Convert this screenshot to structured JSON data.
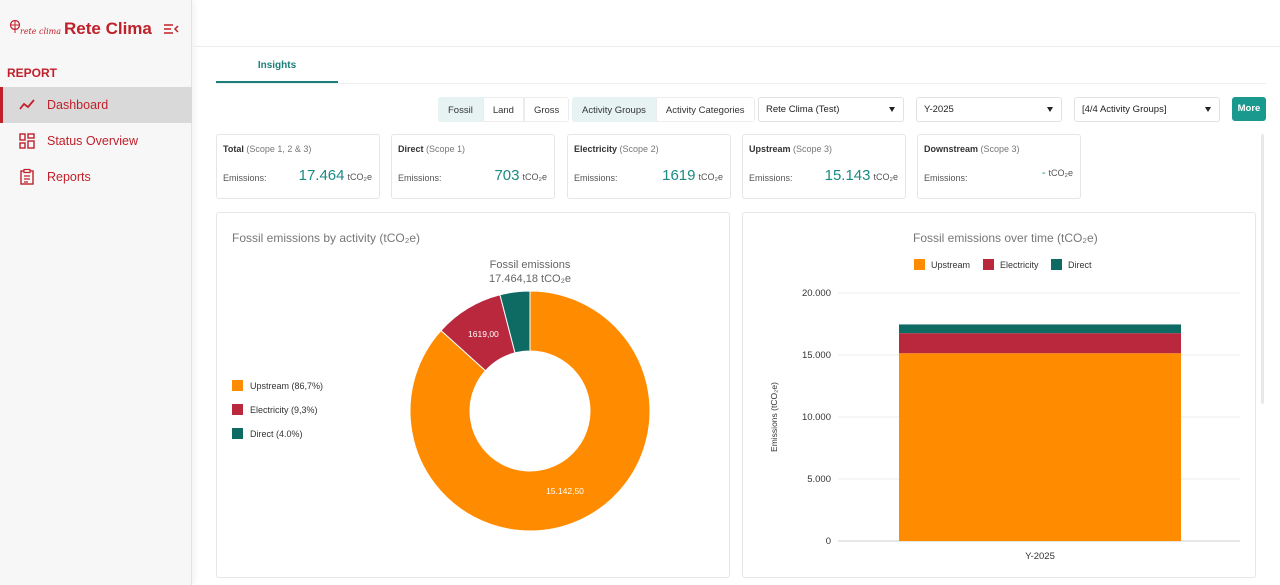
{
  "app": {
    "brand_small": "rete clima",
    "brand_name": "Rete Clima",
    "colors": {
      "brand": "#c0202a",
      "accent": "#1a9a8f",
      "upstream": "#ff8c00",
      "electricity": "#b9283c",
      "direct": "#0e6b63"
    }
  },
  "sidebar": {
    "section": "REPORT",
    "items": [
      {
        "label": "Dashboard",
        "icon": "trend-line-icon",
        "active": true
      },
      {
        "label": "Status Overview",
        "icon": "grid-icon",
        "active": false
      },
      {
        "label": "Reports",
        "icon": "clipboard-icon",
        "active": false
      }
    ]
  },
  "tabs": [
    {
      "label": "Insights"
    }
  ],
  "filters": {
    "emission_type": [
      "Fossil",
      "Land",
      "Gross"
    ],
    "emission_type_selected": "Fossil",
    "grouping": [
      "Activity Groups",
      "Activity Categories"
    ],
    "grouping_selected": "Activity Groups",
    "organization": "Rete Clima (Test)",
    "year": "Y-2025",
    "activity_groups": "[4/4 Activity Groups]",
    "more_label": "More"
  },
  "kpis": [
    {
      "title": "Total",
      "scope": "(Scope 1, 2 & 3)",
      "label": "Emissions:",
      "value": "17.464",
      "unit": "tCO₂e"
    },
    {
      "title": "Direct",
      "scope": "(Scope 1)",
      "label": "Emissions:",
      "value": "703",
      "unit": "tCO₂e"
    },
    {
      "title": "Electricity",
      "scope": "(Scope 2)",
      "label": "Emissions:",
      "value": "1619",
      "unit": "tCO₂e"
    },
    {
      "title": "Upstream",
      "scope": "(Scope 3)",
      "label": "Emissions:",
      "value": "15.143",
      "unit": "tCO₂e"
    },
    {
      "title": "Downstream",
      "scope": "(Scope 3)",
      "label": "Emissions:",
      "value": "-",
      "unit": "tCO₂e"
    }
  ],
  "donut_panel": {
    "title": "Fossil emissions by activity (tCO₂e)",
    "center_title": "Fossil emissions",
    "center_total": "17.464,18 tCO₂e",
    "legend": [
      {
        "label": "Upstream (86,7%)",
        "color": "#ff8c00"
      },
      {
        "label": "Electricity (9,3%)",
        "color": "#b9283c"
      },
      {
        "label": "Direct (4.0%)",
        "color": "#0e6b63"
      }
    ],
    "slice_labels": {
      "upstream": "15.142,50",
      "electricity": "1619,00"
    }
  },
  "bar_panel": {
    "title": "Fossil emissions over time (tCO₂e)",
    "legend": [
      {
        "label": "Upstream",
        "color": "#ff8c00"
      },
      {
        "label": "Electricity",
        "color": "#b9283c"
      },
      {
        "label": "Direct",
        "color": "#0e6b63"
      }
    ],
    "ylabel": "Emissions (tCO₂e)",
    "yticks": [
      "20.000",
      "15.000",
      "10.000",
      "5.000",
      "0"
    ],
    "xlabel_cat": "Y-2025"
  },
  "chart_data": [
    {
      "type": "pie",
      "title": "Fossil emissions by activity (tCO₂e)",
      "labels": [
        "Upstream",
        "Electricity",
        "Direct"
      ],
      "values": [
        15142.5,
        1619.0,
        702.68
      ],
      "colors": [
        "#ff8c00",
        "#b9283c",
        "#0e6b63"
      ]
    },
    {
      "type": "bar",
      "title": "Fossil emissions over time (tCO₂e)",
      "categories": [
        "Y-2025"
      ],
      "series": [
        {
          "name": "Upstream",
          "values": [
            15142.5
          ],
          "color": "#ff8c00"
        },
        {
          "name": "Electricity",
          "values": [
            1619.0
          ],
          "color": "#b9283c"
        },
        {
          "name": "Direct",
          "values": [
            702.68
          ],
          "color": "#0e6b63"
        }
      ],
      "stacked": true,
      "ylabel": "Emissions (tCO₂e)",
      "ylim": [
        0,
        20000
      ]
    }
  ]
}
